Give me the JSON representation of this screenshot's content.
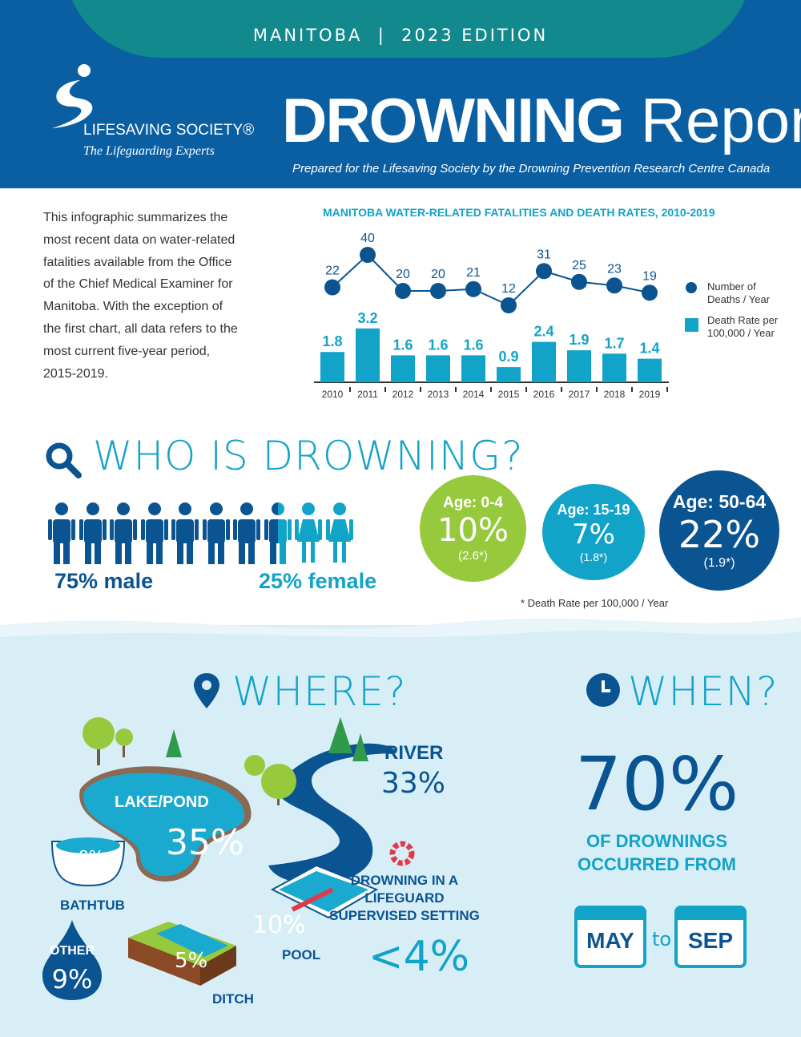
{
  "header": {
    "edition": "MANITOBA  |  2023 EDITION",
    "logo_name": "LIFESAVING SOCIETY®",
    "logo_tagline": "The Lifeguarding Experts",
    "title_bold": "DROWNING",
    "title_light": "Report",
    "subtitle": "Prepared for the Lifesaving Society by the Drowning Prevention Research Centre Canada"
  },
  "intro": "This infographic summarizes the most recent data on water-related fatalities available from the Office of the Chief Medical Examiner for Manitoba. With the exception of the first chart, all data refers to the most current five-year period, 2015-2019.",
  "chart_data": {
    "type": "bar+line",
    "title": "MANITOBA WATER-RELATED FATALITIES AND DEATH RATES, 2010-2019",
    "categories": [
      "2010",
      "2011",
      "2012",
      "2013",
      "2014",
      "2015",
      "2016",
      "2017",
      "2018",
      "2019"
    ],
    "series": [
      {
        "name": "Number of Deaths / Year",
        "type": "line",
        "values": [
          22,
          40,
          20,
          20,
          21,
          12,
          31,
          25,
          23,
          19
        ],
        "color": "#0a5491"
      },
      {
        "name": "Death Rate per 100,000 / Year",
        "type": "bar",
        "values": [
          1.8,
          3.2,
          1.6,
          1.6,
          1.6,
          0.9,
          2.4,
          1.9,
          1.7,
          1.4
        ],
        "color": "#12a3c8"
      }
    ],
    "legend": [
      "Number of Deaths / Year",
      "Death Rate per 100,000 / Year"
    ],
    "legend_position": "right"
  },
  "who": {
    "heading": "WHO IS DROWNING?",
    "male": "75% male",
    "female": "25% female",
    "male_pct": 75,
    "ages": [
      {
        "label": "Age: 0-4",
        "pct": "10%",
        "rate": "(2.6*)",
        "color": "#97c93d"
      },
      {
        "label": "Age: 15-19",
        "pct": "7%",
        "rate": "(1.8*)",
        "color": "#12a3c8"
      },
      {
        "label": "Age: 50-64",
        "pct": "22%",
        "rate": "(1.9*)",
        "color": "#0a5491"
      }
    ],
    "footnote": "* Death Rate per 100,000 / Year"
  },
  "where": {
    "heading": "WHERE?",
    "lake_label": "LAKE/POND",
    "lake": "35%",
    "river_label": "RIVER",
    "river": "33%",
    "bathtub_label": "BATHTUB",
    "bathtub": "8%",
    "pool_label": "POOL",
    "pool": "10%",
    "ditch_label": "DITCH",
    "ditch": "5%",
    "other_label": "OTHER",
    "other": "9%",
    "lifeguard_label": "DROWNING IN A LIFEGUARD SUPERVISED SETTING",
    "lifeguard": "<4%"
  },
  "when": {
    "heading": "WHEN?",
    "pct": "70%",
    "text": "OF DROWNINGS OCCURRED FROM",
    "from": "MAY",
    "to_word": "to",
    "to": "SEP"
  }
}
